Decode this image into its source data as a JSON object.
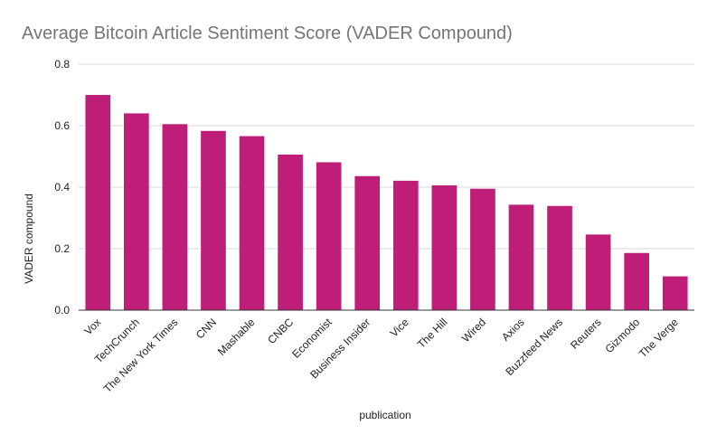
{
  "chart_data": {
    "type": "bar",
    "title": "Average Bitcoin Article Sentiment Score (VADER Compound)",
    "xlabel": "publication",
    "ylabel": "VADER compound",
    "ylim": [
      0,
      0.8
    ],
    "yticks": [
      "0.0",
      "0.2",
      "0.4",
      "0.6",
      "0.8"
    ],
    "grid": true,
    "bar_color": "#be1e78",
    "categories": [
      "Vox",
      "TechCrunch",
      "The New York Times",
      "CNN",
      "Mashable",
      "CNBC",
      "Economist",
      "Business Insider",
      "Vice",
      "The Hill",
      "Wired",
      "Axios",
      "Buzzfeed News",
      "Reuters",
      "Gizmodo",
      "The Verge"
    ],
    "values": [
      0.7,
      0.64,
      0.605,
      0.583,
      0.566,
      0.506,
      0.481,
      0.436,
      0.421,
      0.406,
      0.395,
      0.343,
      0.339,
      0.246,
      0.186,
      0.11
    ]
  }
}
